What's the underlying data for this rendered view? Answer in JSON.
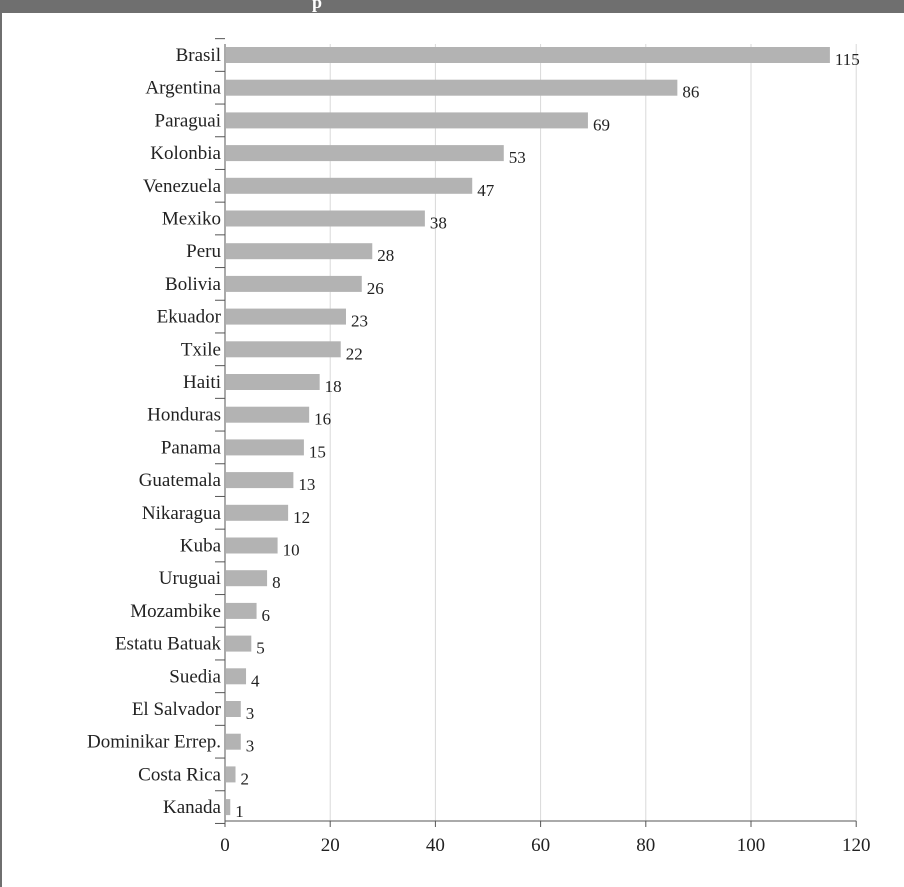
{
  "header": {
    "visible_text": "p"
  },
  "colors": {
    "bar": "#b3b3b3",
    "grid": "#d9d9d9",
    "axis": "#555555",
    "header": "#6f6f6f"
  },
  "chart_data": {
    "type": "bar",
    "orientation": "horizontal",
    "categories": [
      "Brasil",
      "Argentina",
      "Paraguai",
      "Kolonbia",
      "Venezuela",
      "Mexiko",
      "Peru",
      "Bolivia",
      "Ekuador",
      "Txile",
      "Haiti",
      "Honduras",
      "Panama",
      "Guatemala",
      "Nikaragua",
      "Kuba",
      "Uruguai",
      "Mozambike",
      "Estatu Batuak",
      "Suedia",
      "El Salvador",
      "Dominikar Errep.",
      "Costa Rica",
      "Kanada"
    ],
    "values": [
      115,
      86,
      69,
      53,
      47,
      38,
      28,
      26,
      23,
      22,
      18,
      16,
      15,
      13,
      12,
      10,
      8,
      6,
      5,
      4,
      3,
      3,
      2,
      1
    ],
    "xlim": [
      0,
      120
    ],
    "xticks": [
      0,
      20,
      40,
      60,
      80,
      100,
      120
    ],
    "grid": true,
    "data_labels": true,
    "title": "",
    "xlabel": "",
    "ylabel": ""
  }
}
